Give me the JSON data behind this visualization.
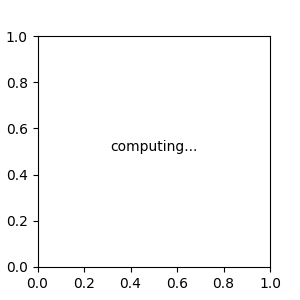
{
  "background_color": "#e6e6e6",
  "bond_color": "#2d6b6b",
  "cl_color": "#4cb04c",
  "o_color": "#cc2222",
  "h_color": "#7a9eaa",
  "figsize": [
    3.0,
    3.0
  ],
  "dpi": 100,
  "lw": 1.35
}
